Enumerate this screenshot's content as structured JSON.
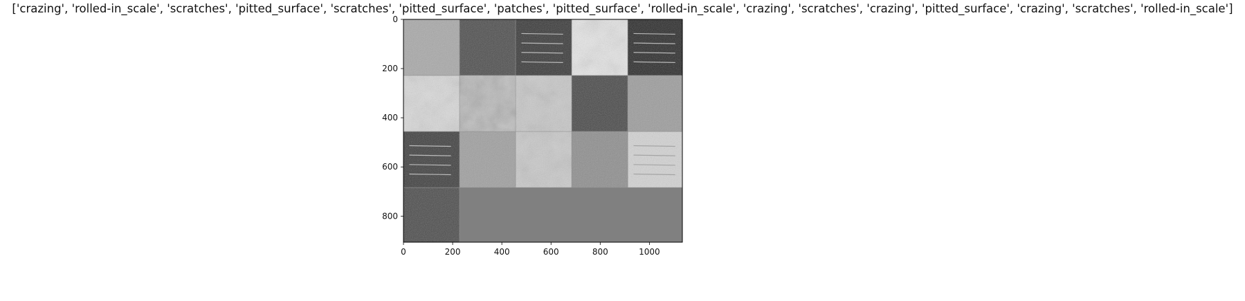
{
  "chart_data": {
    "type": "image_grid",
    "title": "['crazing', 'rolled-in_scale', 'scratches', 'pitted_surface', 'scratches', 'pitted_surface', 'patches', 'pitted_surface', 'rolled-in_scale', 'crazing', 'scratches', 'crazing', 'pitted_surface', 'crazing', 'scratches', 'rolled-in_scale']",
    "xlim": [
      0,
      1134
    ],
    "ylim": [
      906,
      0
    ],
    "xticks": [
      0,
      200,
      400,
      600,
      800,
      1000
    ],
    "yticks": [
      0,
      200,
      400,
      600,
      800
    ],
    "grid": false,
    "grid_layout": {
      "columns": 5,
      "rows": 4,
      "tile_size": 226,
      "padding": 2
    },
    "tiles": [
      {
        "label": "crazing",
        "tone": "#a9a9a9"
      },
      {
        "label": "rolled-in_scale",
        "tone": "#4f4f4f"
      },
      {
        "label": "scratches",
        "tone": "#3a3a3a"
      },
      {
        "label": "pitted_surface",
        "tone": "#e6e6e6"
      },
      {
        "label": "scratches",
        "tone": "#2c2c2c"
      },
      {
        "label": "pitted_surface",
        "tone": "#d9d9d9"
      },
      {
        "label": "patches",
        "tone": "#b5b5b5"
      },
      {
        "label": "pitted_surface",
        "tone": "#c8c8c8"
      },
      {
        "label": "rolled-in_scale",
        "tone": "#4a4a4a"
      },
      {
        "label": "crazing",
        "tone": "#9d9d9d"
      },
      {
        "label": "scratches",
        "tone": "#404040"
      },
      {
        "label": "crazing",
        "tone": "#a0a0a0"
      },
      {
        "label": "pitted_surface",
        "tone": "#c9c9c9"
      },
      {
        "label": "crazing",
        "tone": "#8f8f8f"
      },
      {
        "label": "scratches",
        "tone": "#d3d3d3"
      },
      {
        "label": "rolled-in_scale",
        "tone": "#4d4d4d"
      }
    ],
    "empty_tone": "#808080"
  }
}
